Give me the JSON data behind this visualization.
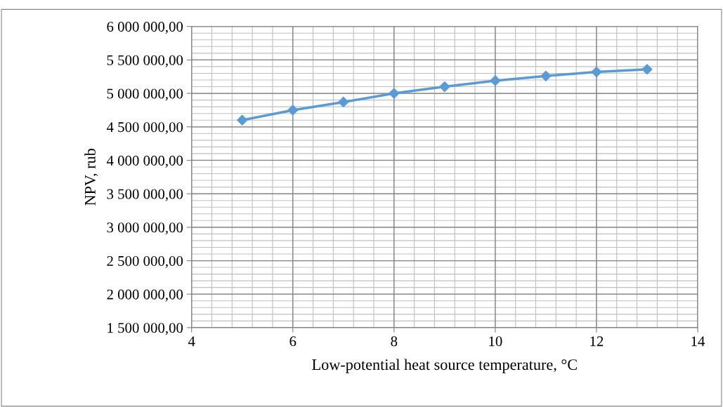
{
  "chart_data": {
    "type": "line",
    "xlabel": "Low-potential heat source temperature, °C",
    "ylabel": "NPV, rub",
    "x": [
      5,
      6,
      7,
      8,
      9,
      10,
      11,
      12,
      13
    ],
    "series": [
      {
        "color": "#5b9bd5",
        "values": [
          4600000,
          4750000,
          4870000,
          5000000,
          5100000,
          5190000,
          5260000,
          5320000,
          5360000
        ]
      }
    ],
    "xlim": [
      4,
      14
    ],
    "xticks": [
      4,
      6,
      8,
      10,
      12,
      14
    ],
    "ylim": [
      1500000,
      6000000
    ],
    "yticks": [
      {
        "value": 1500000,
        "label": "1 500 000,00"
      },
      {
        "value": 2000000,
        "label": "2 000 000,00"
      },
      {
        "value": 2500000,
        "label": "2 500 000,00"
      },
      {
        "value": 3000000,
        "label": "3 000 000,00"
      },
      {
        "value": 3500000,
        "label": "3 500 000,00"
      },
      {
        "value": 4000000,
        "label": "4 000 000,00"
      },
      {
        "value": 4500000,
        "label": "4 500 000,00"
      },
      {
        "value": 5000000,
        "label": "5 000 000,00"
      },
      {
        "value": 5500000,
        "label": "5 500 000,00"
      },
      {
        "value": 6000000,
        "label": "6 000 000,00"
      }
    ],
    "grid": true,
    "marker": "diamond",
    "line_style": "solid"
  }
}
